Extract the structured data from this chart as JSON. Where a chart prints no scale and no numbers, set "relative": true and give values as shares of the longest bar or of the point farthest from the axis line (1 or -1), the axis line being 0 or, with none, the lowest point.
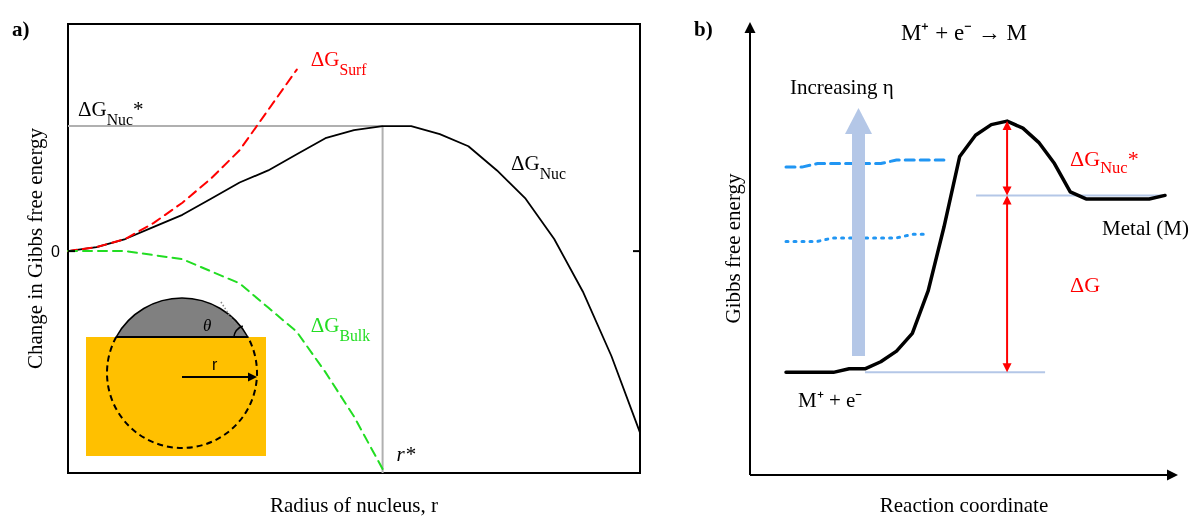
{
  "chart_data": [
    {
      "type": "line",
      "title": "a)",
      "xlabel": "Radius of nucleus, r",
      "ylabel": "Change in Gibbs free energy",
      "relative": true,
      "categories": [
        null,
        null,
        null,
        null,
        null,
        null,
        null,
        null,
        null,
        null,
        null,
        null,
        null,
        null,
        null,
        null,
        null,
        null,
        null,
        null,
        null
      ],
      "series": [
        {
          "name": "ΔG$_{Nuc}$",
          "color": "#000000",
          "line_style": "solid",
          "values": [
            0.55,
            0.56,
            0.58,
            0.61,
            0.64,
            0.68,
            0.72,
            0.75,
            0.79,
            0.83,
            0.85,
            0.86,
            0.86,
            0.84,
            0.81,
            0.75,
            0.68,
            0.58,
            0.45,
            0.29,
            0.1
          ]
        },
        {
          "name": "ΔG$_{Surf}$",
          "color": "#ff0000",
          "line_style": "dashed",
          "values": [
            0.55,
            0.56,
            0.58,
            0.62,
            0.67,
            0.73,
            0.8,
            0.9,
            1,
            null,
            null,
            null,
            null,
            null,
            null,
            null,
            null,
            null,
            null,
            null,
            null
          ]
        },
        {
          "name": "ΔG$_{Bulk}$",
          "color": "#22dd22",
          "line_style": "dashed",
          "values": [
            0.55,
            0.55,
            0.55,
            0.54,
            0.53,
            0.5,
            0.47,
            0.41,
            0.35,
            0.25,
            0.14,
            0.01,
            null,
            null,
            null,
            null,
            null,
            null,
            null,
            null,
            null
          ]
        }
      ],
      "annotations": [
        "0",
        "ΔG$_{Nuc}$*",
        "r*",
        "θ",
        "r"
      ]
    },
    {
      "type": "line",
      "title": "b)",
      "subtitle": "M⁺ + e⁻ → M",
      "xlabel": "Reaction coordinate",
      "ylabel": "Gibbs free energy",
      "relative": true,
      "categories": [
        null,
        null,
        null,
        null,
        null,
        null,
        null,
        null,
        null,
        null,
        null,
        null,
        null,
        null,
        null,
        null,
        null,
        null,
        null,
        null,
        null,
        null,
        null,
        null,
        null
      ],
      "series": [
        {
          "color": "#000000",
          "line_style": "solid",
          "values": [
            0.29,
            0.29,
            0.29,
            0.29,
            0.3,
            0.3,
            0.32,
            0.35,
            0.4,
            0.52,
            0.7,
            0.9,
            0.96,
            0.99,
            1,
            0.98,
            0.94,
            0.88,
            0.8,
            0.78,
            0.78,
            0.78,
            0.78,
            0.78,
            0.79
          ]
        },
        {
          "color": "#2196f3",
          "line_style": "dashed",
          "values": [
            0.87,
            0.87,
            0.88,
            0.88,
            0.88,
            0.88,
            0.88,
            0.89,
            0.89,
            0.89,
            0.89,
            null,
            null,
            null,
            null,
            null,
            null,
            null,
            null,
            null,
            null,
            null,
            null,
            null,
            null
          ]
        },
        {
          "color": "#2196f3",
          "line_style": "dotted",
          "values": [
            0.66,
            0.66,
            0.66,
            0.67,
            0.67,
            0.67,
            0.67,
            0.67,
            0.68,
            0.68,
            null,
            null,
            null,
            null,
            null,
            null,
            null,
            null,
            null,
            null,
            null,
            null,
            null,
            null,
            null
          ]
        }
      ],
      "annotations": [
        "Increasing η",
        "M⁺ + e⁻",
        "Metal (M)",
        "ΔG$_{Nuc}$*",
        "ΔG"
      ]
    }
  ]
}
